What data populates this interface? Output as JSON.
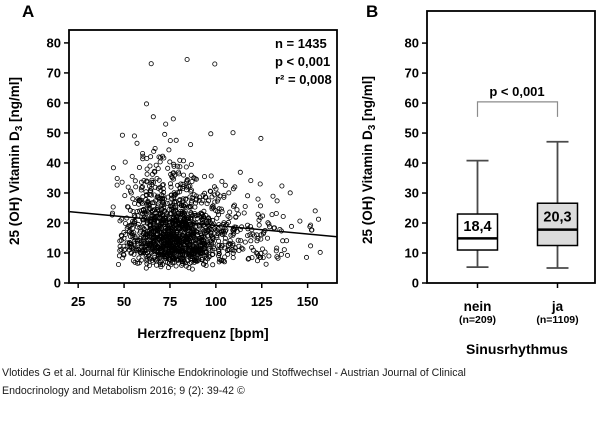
{
  "colors": {
    "ink": "#000000",
    "whisker": "#4a4a4a",
    "bracket": "#8c8c8c",
    "box_nein_fill": "#ffffff",
    "box_ja_fill": "#dcdcdc",
    "background": "#ffffff"
  },
  "panel_a": {
    "letter": "A"
  },
  "panel_b": {
    "letter": "B"
  },
  "ylabel": {
    "main": "25 (OH) Vitamin D",
    "sub": "3",
    "unit": " [ng/ml]"
  },
  "chart_data": [
    {
      "type": "scatter",
      "xlabel": "Herzfrequenz [bpm]",
      "ylabel": "25 (OH) Vitamin D3 [ng/ml]",
      "xlim": [
        20,
        166
      ],
      "ylim": [
        0,
        84.3
      ],
      "xticks": [
        25,
        50,
        75,
        100,
        125,
        150
      ],
      "yticks": [
        0,
        10,
        20,
        30,
        40,
        50,
        60,
        70,
        80
      ],
      "n": 1435,
      "annotation": [
        "n = 1435",
        "p < 0,001",
        "r² = 0,008"
      ],
      "regression_line": {
        "x1": 20,
        "y1": 23.8,
        "x2": 166,
        "y2": 15.4
      },
      "point_distribution": {
        "seed": 7,
        "n": 1435,
        "x_mixture": [
          {
            "w": 0.88,
            "mean": 76,
            "sd": 13,
            "min": 38,
            "max": 163
          },
          {
            "w": 0.12,
            "mean": 110,
            "sd": 22,
            "min": 92,
            "max": 163
          }
        ],
        "y_lognormal": {
          "mu": 2.8,
          "sigma": 0.45,
          "slope_per_bpm": -0.0015,
          "ref_bpm": 78,
          "min": 4.3,
          "max": 78
        }
      }
    },
    {
      "type": "box",
      "xlabel": "Sinusrhythmus",
      "ylabel": "25 (OH) Vitamin D3 [ng/ml]",
      "ylim": [
        0,
        90.7
      ],
      "yticks": [
        0,
        10,
        20,
        30,
        40,
        50,
        60,
        70,
        80
      ],
      "groups": [
        {
          "label": "nein",
          "sublabel": "(n=209)",
          "mean_label": "18,4",
          "whisker_low": 5.3,
          "q1": 11.0,
          "median": 14.9,
          "q3": 23.0,
          "whisker_high": 40.8,
          "fill": "#ffffff"
        },
        {
          "label": "ja",
          "sublabel": "(n=1109)",
          "mean_label": "20,3",
          "whisker_low": 5.0,
          "q1": 12.5,
          "median": 17.8,
          "q3": 26.6,
          "whisker_high": 47.1,
          "fill": "#dcdcdc"
        }
      ],
      "significance": {
        "label": "p < 0,001",
        "bar_y": 60.4,
        "drop_to": 55.4
      }
    }
  ],
  "caption": {
    "line1": "Vlotides G et al. Journal für Klinische Endokrinologie und Stoffwechsel - Austrian Journal of Clinical",
    "line2": "Endocrinology and Metabolism 2016; 9 (2): 39-42 ©"
  }
}
